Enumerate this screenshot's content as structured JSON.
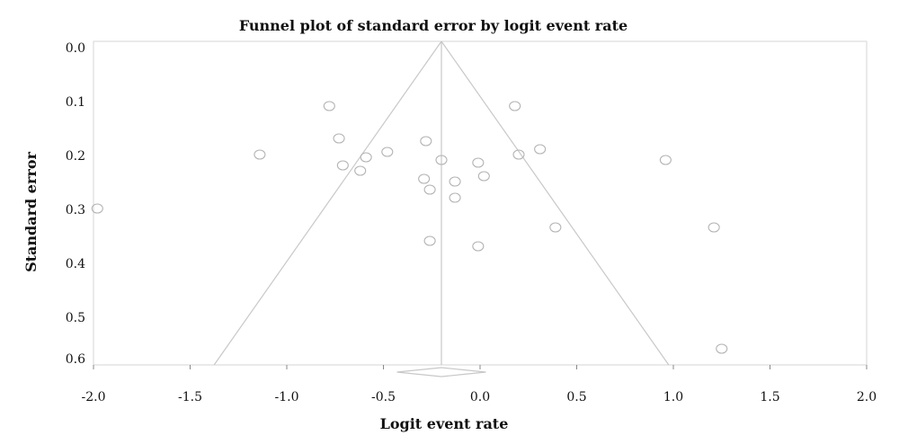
{
  "chart_data": {
    "type": "scatter",
    "title": "Funnel plot of standard error by logit event rate",
    "xlabel": "Logit event rate",
    "ylabel": "Standard error",
    "xlim": [
      -2.0,
      2.0
    ],
    "ylim": [
      0.0,
      0.6
    ],
    "y_inverted": true,
    "grid": false,
    "x_ticks": [
      "-2.0",
      "-1.5",
      "-1.0",
      "-0.5",
      "0.0",
      "0.5",
      "1.0",
      "1.5",
      "2.0"
    ],
    "y_ticks": [
      "0.0",
      "0.1",
      "0.2",
      "0.3",
      "0.4",
      "0.5",
      "0.6"
    ],
    "pooled_estimate": -0.2,
    "points": [
      {
        "x": -1.98,
        "y": 0.31
      },
      {
        "x": -1.14,
        "y": 0.21
      },
      {
        "x": -0.78,
        "y": 0.12
      },
      {
        "x": -0.73,
        "y": 0.18
      },
      {
        "x": -0.71,
        "y": 0.23
      },
      {
        "x": -0.62,
        "y": 0.24
      },
      {
        "x": -0.59,
        "y": 0.215
      },
      {
        "x": -0.48,
        "y": 0.205
      },
      {
        "x": -0.28,
        "y": 0.185
      },
      {
        "x": -0.29,
        "y": 0.255
      },
      {
        "x": -0.26,
        "y": 0.275
      },
      {
        "x": -0.26,
        "y": 0.37
      },
      {
        "x": -0.2,
        "y": 0.22
      },
      {
        "x": -0.13,
        "y": 0.26
      },
      {
        "x": -0.13,
        "y": 0.29
      },
      {
        "x": -0.01,
        "y": 0.225
      },
      {
        "x": 0.02,
        "y": 0.25
      },
      {
        "x": -0.01,
        "y": 0.38
      },
      {
        "x": 0.18,
        "y": 0.12
      },
      {
        "x": 0.2,
        "y": 0.21
      },
      {
        "x": 0.31,
        "y": 0.2
      },
      {
        "x": 0.39,
        "y": 0.345
      },
      {
        "x": 0.96,
        "y": 0.22
      },
      {
        "x": 1.21,
        "y": 0.345
      },
      {
        "x": 1.25,
        "y": 0.57
      }
    ]
  }
}
